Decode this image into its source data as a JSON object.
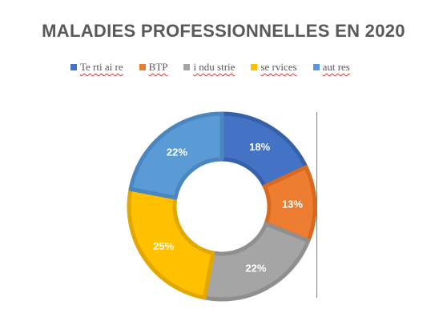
{
  "chart_data": {
    "type": "pie",
    "title": "MALADIES PROFESSIONNELLES EN 2020",
    "donut": true,
    "legend_position": "top",
    "categories": [
      "Te rti ai re",
      "BTP",
      "i ndu strie",
      "se rvices",
      "aut res"
    ],
    "values": [
      18,
      13,
      22,
      25,
      22
    ],
    "labels": [
      "18%",
      "13%",
      "22%",
      "25%",
      "22%"
    ],
    "colors": [
      "#4472c4",
      "#ed7d31",
      "#a5a5a5",
      "#ffc000",
      "#5b9bd5"
    ],
    "edge_colors": [
      "#3561ab",
      "#d86a1f",
      "#8f8f8f",
      "#e0a800",
      "#4a86bf"
    ]
  }
}
